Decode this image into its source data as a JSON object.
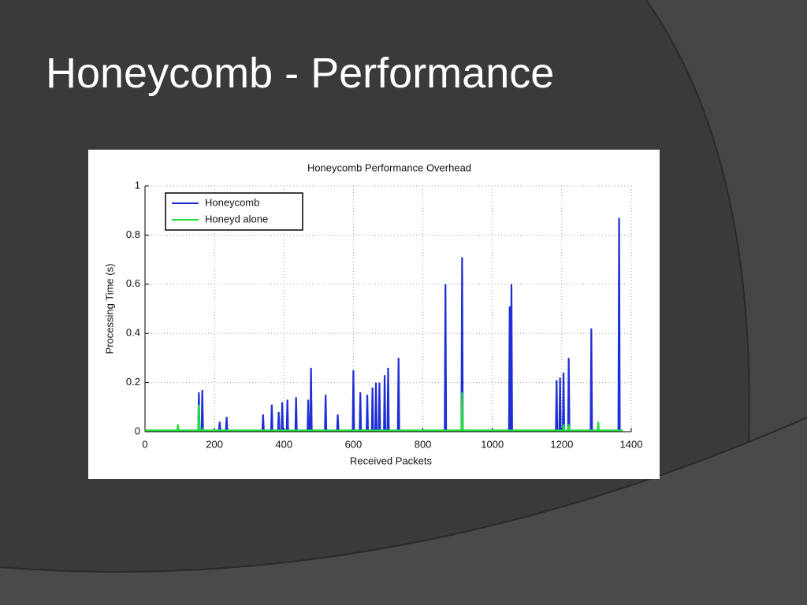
{
  "slide": {
    "title": "Honeycomb - Performance"
  },
  "chart_data": {
    "type": "line",
    "title": "Honeycomb Performance Overhead",
    "x_label": "Received Packets",
    "y_label": "Processing Time (s)",
    "x": [
      0,
      93,
      95,
      97,
      153,
      155,
      157,
      163,
      165,
      167,
      213,
      215,
      217,
      233,
      235,
      237,
      338,
      340,
      342,
      363,
      365,
      367,
      383,
      385,
      387,
      393,
      395,
      397,
      408,
      410,
      412,
      433,
      435,
      437,
      468,
      470,
      472,
      476,
      478,
      480,
      518,
      520,
      522,
      553,
      555,
      557,
      598,
      600,
      602,
      618,
      620,
      622,
      638,
      640,
      642,
      653,
      655,
      657,
      663,
      665,
      667,
      673,
      675,
      677,
      688,
      690,
      692,
      698,
      700,
      702,
      728,
      730,
      732,
      863,
      865,
      867,
      911,
      913,
      915,
      1048,
      1050,
      1052,
      1053,
      1055,
      1057,
      1183,
      1185,
      1187,
      1193,
      1195,
      1197,
      1203,
      1205,
      1207,
      1218,
      1220,
      1222,
      1283,
      1285,
      1287,
      1303,
      1305,
      1307,
      1363,
      1365,
      1367,
      1375
    ],
    "series": [
      {
        "name": "Honeycomb",
        "color": "#1f2fd6",
        "values": [
          0.005,
          0.005,
          0.02,
          0.005,
          0.005,
          0.16,
          0.005,
          0.005,
          0.17,
          0.005,
          0.005,
          0.04,
          0.005,
          0.005,
          0.06,
          0.005,
          0.005,
          0.07,
          0.005,
          0.005,
          0.11,
          0.005,
          0.005,
          0.08,
          0.005,
          0.005,
          0.12,
          0.005,
          0.005,
          0.13,
          0.005,
          0.005,
          0.14,
          0.005,
          0.005,
          0.13,
          0.005,
          0.005,
          0.26,
          0.005,
          0.005,
          0.15,
          0.005,
          0.005,
          0.07,
          0.005,
          0.005,
          0.25,
          0.005,
          0.005,
          0.16,
          0.005,
          0.005,
          0.15,
          0.005,
          0.005,
          0.18,
          0.005,
          0.005,
          0.2,
          0.005,
          0.005,
          0.2,
          0.005,
          0.005,
          0.23,
          0.005,
          0.005,
          0.26,
          0.005,
          0.005,
          0.3,
          0.005,
          0.005,
          0.6,
          0.005,
          0.005,
          0.71,
          0.005,
          0.005,
          0.51,
          0.005,
          0.005,
          0.6,
          0.005,
          0.005,
          0.21,
          0.005,
          0.005,
          0.22,
          0.005,
          0.005,
          0.24,
          0.005,
          0.005,
          0.3,
          0.005,
          0.005,
          0.42,
          0.005,
          0.005,
          0.01,
          0.005,
          0.005,
          0.87,
          0.005,
          0.005
        ]
      },
      {
        "name": "Honeyd alone",
        "color": "#22e03a",
        "values": [
          0.005,
          0.005,
          0.03,
          0.005,
          0.005,
          0.11,
          0.005,
          0.005,
          0.01,
          0.005,
          0.005,
          0.005,
          0.005,
          0.005,
          0.005,
          0.005,
          0.005,
          0.005,
          0.005,
          0.005,
          0.005,
          0.005,
          0.005,
          0.005,
          0.005,
          0.005,
          0.005,
          0.005,
          0.005,
          0.005,
          0.005,
          0.005,
          0.005,
          0.005,
          0.005,
          0.005,
          0.005,
          0.005,
          0.005,
          0.005,
          0.005,
          0.005,
          0.005,
          0.005,
          0.005,
          0.005,
          0.005,
          0.005,
          0.005,
          0.005,
          0.005,
          0.005,
          0.005,
          0.005,
          0.005,
          0.005,
          0.005,
          0.005,
          0.005,
          0.005,
          0.005,
          0.005,
          0.005,
          0.005,
          0.005,
          0.005,
          0.005,
          0.005,
          0.005,
          0.005,
          0.005,
          0.005,
          0.005,
          0.005,
          0.005,
          0.005,
          0.005,
          0.16,
          0.005,
          0.005,
          0.005,
          0.005,
          0.005,
          0.005,
          0.005,
          0.005,
          0.005,
          0.005,
          0.005,
          0.005,
          0.005,
          0.005,
          0.03,
          0.005,
          0.005,
          0.03,
          0.005,
          0.005,
          0.005,
          0.005,
          0.005,
          0.04,
          0.005,
          0.005,
          0.005,
          0.005,
          0.005
        ]
      }
    ],
    "xlim": [
      0,
      1400
    ],
    "xticks": [
      0,
      200,
      400,
      600,
      800,
      1000,
      1200,
      1400
    ],
    "ylim": [
      0,
      1
    ],
    "yticks": [
      0,
      0.2,
      0.4,
      0.6,
      0.8,
      1
    ],
    "grid": true,
    "legend": "upper left"
  }
}
